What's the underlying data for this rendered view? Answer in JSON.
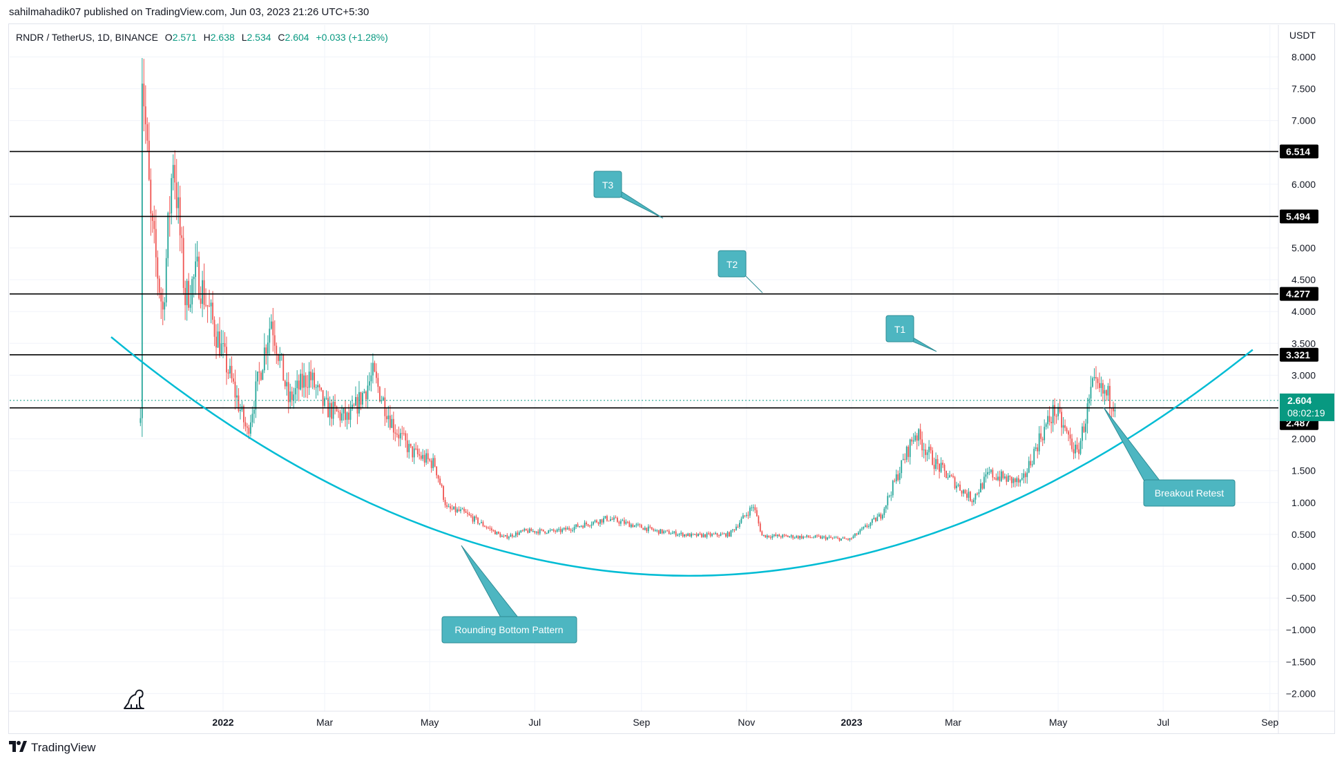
{
  "header": {
    "caption": "sahilmahadik07 published on TradingView.com, Jun 03, 2023 21:26 UTC+5:30"
  },
  "legend": {
    "symbol": "RNDR / TetherUS, 1D, BINANCE",
    "o_label": "O",
    "o_value": "2.571",
    "h_label": "H",
    "h_value": "2.638",
    "l_label": "L",
    "l_value": "2.534",
    "c_label": "C",
    "c_value": "2.604",
    "change": "+0.033 (+1.28%)"
  },
  "axis": {
    "currency": "USDT",
    "y_ticks": [
      "8.000",
      "7.500",
      "7.000",
      "6.000",
      "5.000",
      "4.500",
      "4.000",
      "3.500",
      "3.000",
      "2.000",
      "1.500",
      "1.000",
      "0.500",
      "0.000",
      "−0.500",
      "−1.000",
      "−1.500",
      "−2.000"
    ],
    "x_ticks": [
      "2022",
      "Mar",
      "May",
      "Jul",
      "Sep",
      "Nov",
      "2023",
      "Mar",
      "May",
      "Jul",
      "Sep"
    ]
  },
  "levels": [
    {
      "label": "6.514",
      "value": 6.514
    },
    {
      "label": "5.494",
      "value": 5.494
    },
    {
      "label": "4.277",
      "value": 4.277
    },
    {
      "label": "3.321",
      "value": 3.321
    },
    {
      "label": "2.487",
      "value": 2.487
    }
  ],
  "price_tag": {
    "price": "2.604",
    "countdown": "08:02:19",
    "value": 2.604
  },
  "callouts": {
    "t3": "T3",
    "t2": "T2",
    "t1": "T1",
    "breakout": "Breakout Retest",
    "rounding": "Rounding Bottom Pattern"
  },
  "colors": {
    "up": "#26a69a",
    "down": "#ef5350",
    "curve": "#00bcd4",
    "callout": "#4db6c1",
    "level_line": "#000000",
    "price_tag": "#089981"
  },
  "footer": {
    "brand": "TradingView"
  },
  "chart_data": {
    "type": "candlestick",
    "symbol": "RNDR / TetherUS",
    "interval": "1D",
    "exchange": "BINANCE",
    "y_range": [
      -2.2,
      8.2
    ],
    "anchors": [
      {
        "date": "2021-11-14",
        "price": 2.5
      },
      {
        "date": "2021-11-15",
        "price": 7.9
      },
      {
        "date": "2021-11-20",
        "price": 5.4
      },
      {
        "date": "2021-11-27",
        "price": 4.0
      },
      {
        "date": "2021-12-03",
        "price": 6.5
      },
      {
        "date": "2021-12-10",
        "price": 4.2
      },
      {
        "date": "2021-12-17",
        "price": 4.6
      },
      {
        "date": "2022-01-06",
        "price": 2.9
      },
      {
        "date": "2022-01-15",
        "price": 2.1
      },
      {
        "date": "2022-01-29",
        "price": 3.9
      },
      {
        "date": "2022-02-08",
        "price": 2.6
      },
      {
        "date": "2022-02-20",
        "price": 3.0
      },
      {
        "date": "2022-03-01",
        "price": 2.5
      },
      {
        "date": "2022-03-15",
        "price": 2.3
      },
      {
        "date": "2022-03-29",
        "price": 3.0
      },
      {
        "date": "2022-04-10",
        "price": 2.2
      },
      {
        "date": "2022-04-20",
        "price": 1.8
      },
      {
        "date": "2022-05-04",
        "price": 1.6
      },
      {
        "date": "2022-05-11",
        "price": 0.9
      },
      {
        "date": "2022-05-20",
        "price": 0.85
      },
      {
        "date": "2022-06-13",
        "price": 0.45
      },
      {
        "date": "2022-06-25",
        "price": 0.55
      },
      {
        "date": "2022-07-15",
        "price": 0.55
      },
      {
        "date": "2022-08-12",
        "price": 0.75
      },
      {
        "date": "2022-09-10",
        "price": 0.55
      },
      {
        "date": "2022-10-01",
        "price": 0.48
      },
      {
        "date": "2022-10-22",
        "price": 0.5
      },
      {
        "date": "2022-11-05",
        "price": 0.95
      },
      {
        "date": "2022-11-10",
        "price": 0.48
      },
      {
        "date": "2022-12-15",
        "price": 0.45
      },
      {
        "date": "2022-12-31",
        "price": 0.42
      },
      {
        "date": "2023-01-18",
        "price": 0.8
      },
      {
        "date": "2023-02-07",
        "price": 2.1
      },
      {
        "date": "2023-02-19",
        "price": 1.6
      },
      {
        "date": "2023-03-12",
        "price": 1.05
      },
      {
        "date": "2023-03-22",
        "price": 1.45
      },
      {
        "date": "2023-04-10",
        "price": 1.3
      },
      {
        "date": "2023-04-20",
        "price": 2.0
      },
      {
        "date": "2023-04-29",
        "price": 2.45
      },
      {
        "date": "2023-05-12",
        "price": 1.75
      },
      {
        "date": "2023-05-21",
        "price": 2.8
      },
      {
        "date": "2023-06-03",
        "price": 2.6
      }
    ],
    "horizontal_levels": [
      6.514,
      5.494,
      4.277,
      3.321,
      2.487
    ],
    "last_price": 2.604,
    "pattern_curve": {
      "name": "Rounding Bottom Pattern",
      "points": [
        {
          "date": "2021-10-28",
          "price": 3.6
        },
        {
          "date": "2022-09-24",
          "price": -0.15
        },
        {
          "date": "2023-08-22",
          "price": 3.4
        }
      ]
    }
  }
}
